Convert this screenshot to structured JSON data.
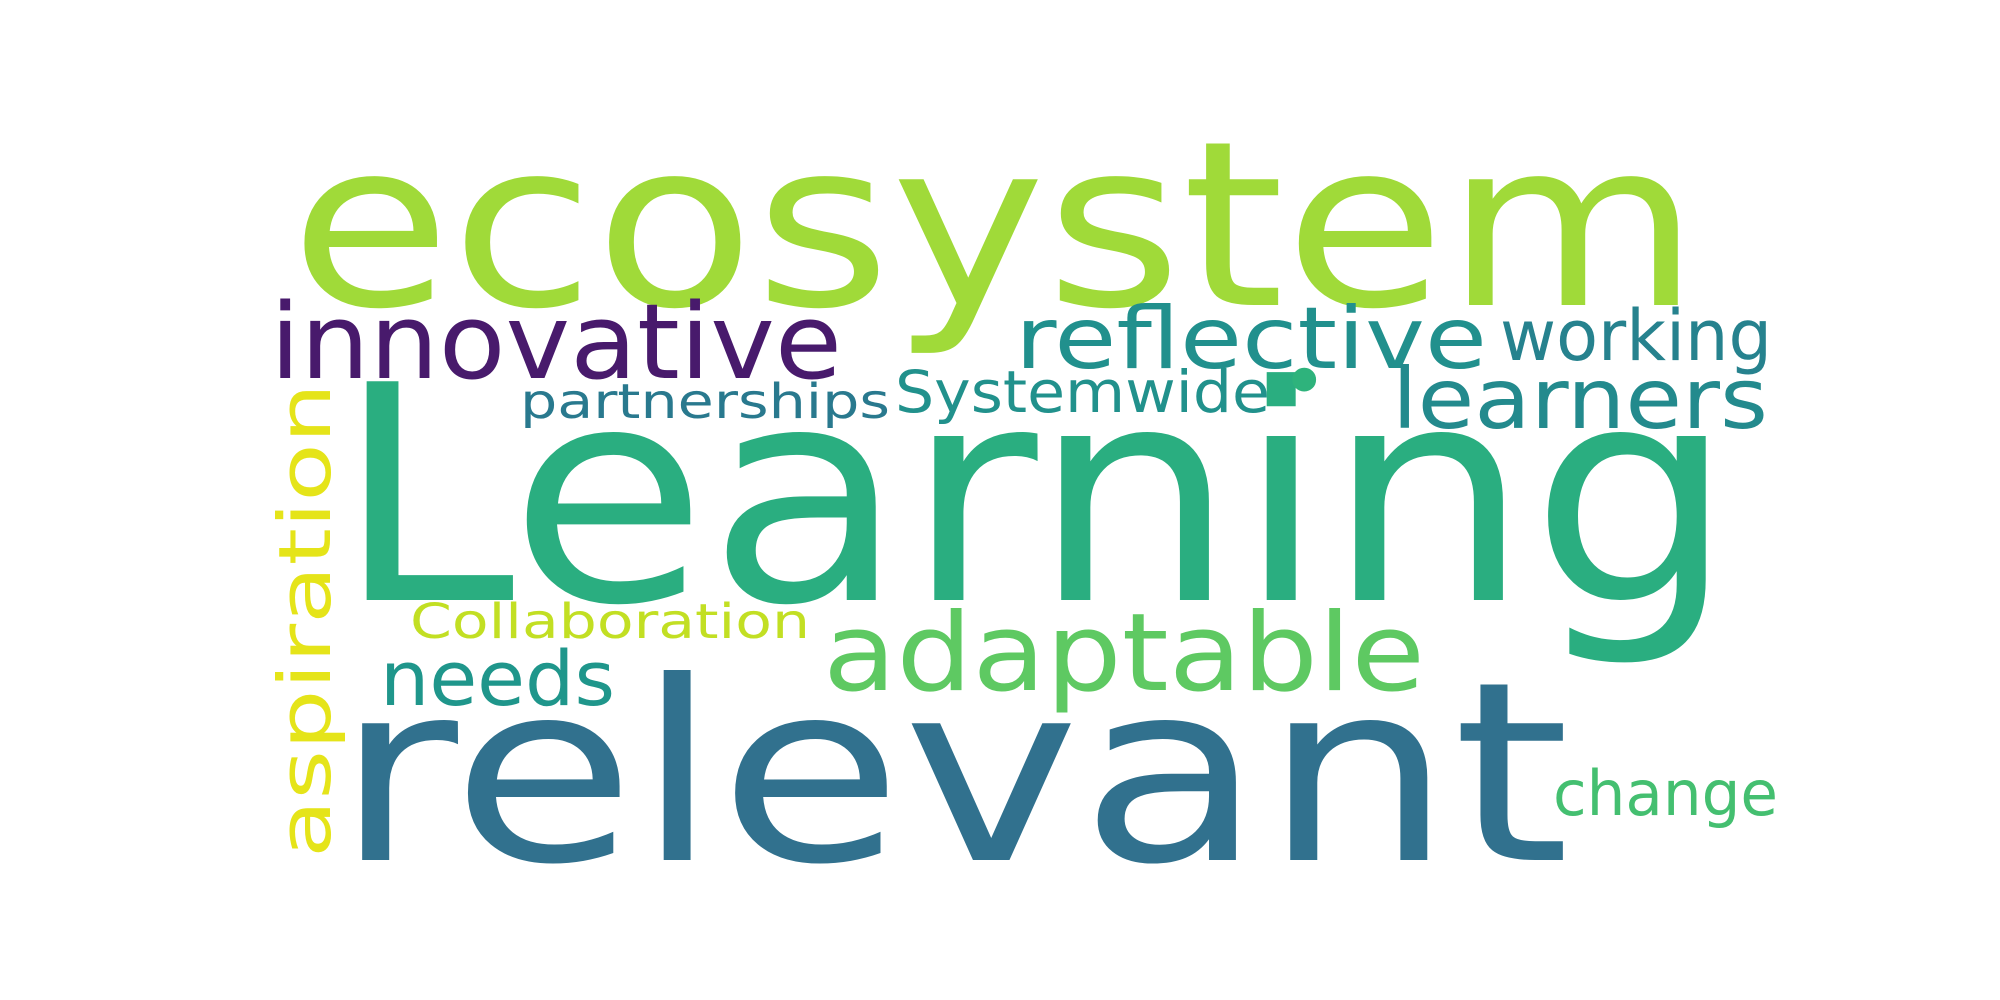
{
  "words": [
    {
      "key": "ecosystem",
      "text": "ecosystem",
      "color": "#a0da39"
    },
    {
      "key": "learning",
      "text": "Learning",
      "color": "#2aae80"
    },
    {
      "key": "relevant",
      "text": "relevant",
      "color": "#31718e"
    },
    {
      "key": "innovative",
      "text": "innovative",
      "color": "#481a6c"
    },
    {
      "key": "reflective",
      "text": "reflective",
      "color": "#21908d"
    },
    {
      "key": "working",
      "text": "working",
      "color": "#26828e"
    },
    {
      "key": "learners",
      "text": "learners",
      "color": "#238a8d"
    },
    {
      "key": "systemwide",
      "text": "Systemwide",
      "color": "#21918c"
    },
    {
      "key": "partnerships",
      "text": "partnerships",
      "color": "#29798e"
    },
    {
      "key": "aspiration",
      "text": "aspiration",
      "color": "#e5e419"
    },
    {
      "key": "collaboration",
      "text": "Collaboration",
      "color": "#c2df23"
    },
    {
      "key": "adaptable",
      "text": "adaptable",
      "color": "#5ec962"
    },
    {
      "key": "needs",
      "text": "needs",
      "color": "#1f968b"
    },
    {
      "key": "change",
      "text": "change",
      "color": "#44bf70"
    },
    {
      "key": "dot",
      "text": "•",
      "color": "#2eb37c"
    }
  ]
}
